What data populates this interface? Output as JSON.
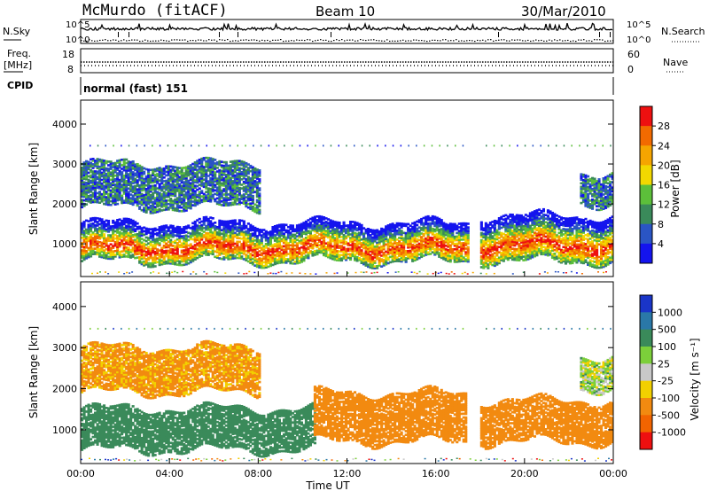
{
  "header": {
    "station": "McMurdo (fitACF)",
    "beam": "Beam 10",
    "date": "30/Mar/2010"
  },
  "top_panels": {
    "nsky_label": "N.Sky",
    "nsky_ticks": [
      "10^5",
      "10^0"
    ],
    "nsearch_label": "N.Search",
    "nsearch_ticks": [
      "10^5",
      "10^0"
    ],
    "freq_label_1": "Freq.",
    "freq_label_2": "[MHz]",
    "freq_ticks": [
      "18",
      "8"
    ],
    "nave_label": "Nave",
    "nave_ticks": [
      "60",
      "0"
    ],
    "cpid_label": "CPID",
    "cpid_value": "normal (fast) 151"
  },
  "chart_data": [
    {
      "type": "heatmap",
      "name": "power",
      "ylabel": "Slant Range [km]",
      "xlim": [
        "00:00",
        "24:00"
      ],
      "ylim": [
        180,
        4600
      ],
      "yticks": [
        "1000",
        "2000",
        "3000",
        "4000"
      ],
      "colorbar_label": "Power [dB]",
      "colorbar_ticks": [
        "4",
        "8",
        "12",
        "16",
        "20",
        "24",
        "28"
      ],
      "colors": [
        "#1414ee",
        "#2a55c4",
        "#3a8a5a",
        "#5cbf3a",
        "#f2d800",
        "#f5a500",
        "#f26a00",
        "#ee1010"
      ],
      "bands": [
        {
          "t_start": 0.0,
          "t_end": 17.4,
          "r_low": 550,
          "r_high": 1500,
          "level": "high"
        },
        {
          "t_start": 18.0,
          "t_end": 24.0,
          "r_low": 550,
          "r_high": 1700,
          "level": "high"
        },
        {
          "t_start": 0.0,
          "t_end": 8.0,
          "r_low": 1900,
          "r_high": 3000,
          "level": "low"
        },
        {
          "t_start": 22.5,
          "t_end": 24.0,
          "r_low": 2000,
          "r_high": 2800,
          "level": "low"
        }
      ]
    },
    {
      "type": "heatmap",
      "name": "velocity",
      "ylabel": "Slant Range [km]",
      "xlabel": "Time UT",
      "xlim": [
        "00:00",
        "24:00"
      ],
      "ylim": [
        180,
        4600
      ],
      "yticks": [
        "1000",
        "2000",
        "3000",
        "4000"
      ],
      "xticks": [
        "00:00",
        "04:00",
        "08:00",
        "12:00",
        "16:00",
        "20:00",
        "00:00"
      ],
      "colorbar_label": "Velocity [m s⁻¹]",
      "colorbar_ticks": [
        "1000",
        "500",
        "100",
        "25",
        "-25",
        "-100",
        "-500",
        "-1000"
      ],
      "colors": [
        "#1a35c8",
        "#2a78a8",
        "#3a8a5a",
        "#7ccf3a",
        "#c8c8c8",
        "#f2d000",
        "#f28a10",
        "#f26400",
        "#ee1010"
      ],
      "bands": [
        {
          "t_start": 0.0,
          "t_end": 10.5,
          "r_low": 500,
          "r_high": 1500,
          "velocity": 300
        },
        {
          "t_start": 10.5,
          "t_end": 17.4,
          "r_low": 700,
          "r_high": 1900,
          "velocity": -300
        },
        {
          "t_start": 18.0,
          "t_end": 24.0,
          "r_low": 700,
          "r_high": 1700,
          "velocity": -300
        },
        {
          "t_start": 0.0,
          "t_end": 8.0,
          "r_low": 1900,
          "r_high": 3000,
          "velocity": -150
        },
        {
          "t_start": 22.5,
          "t_end": 24.0,
          "r_low": 2000,
          "r_high": 2800,
          "velocity": 20
        }
      ]
    }
  ]
}
